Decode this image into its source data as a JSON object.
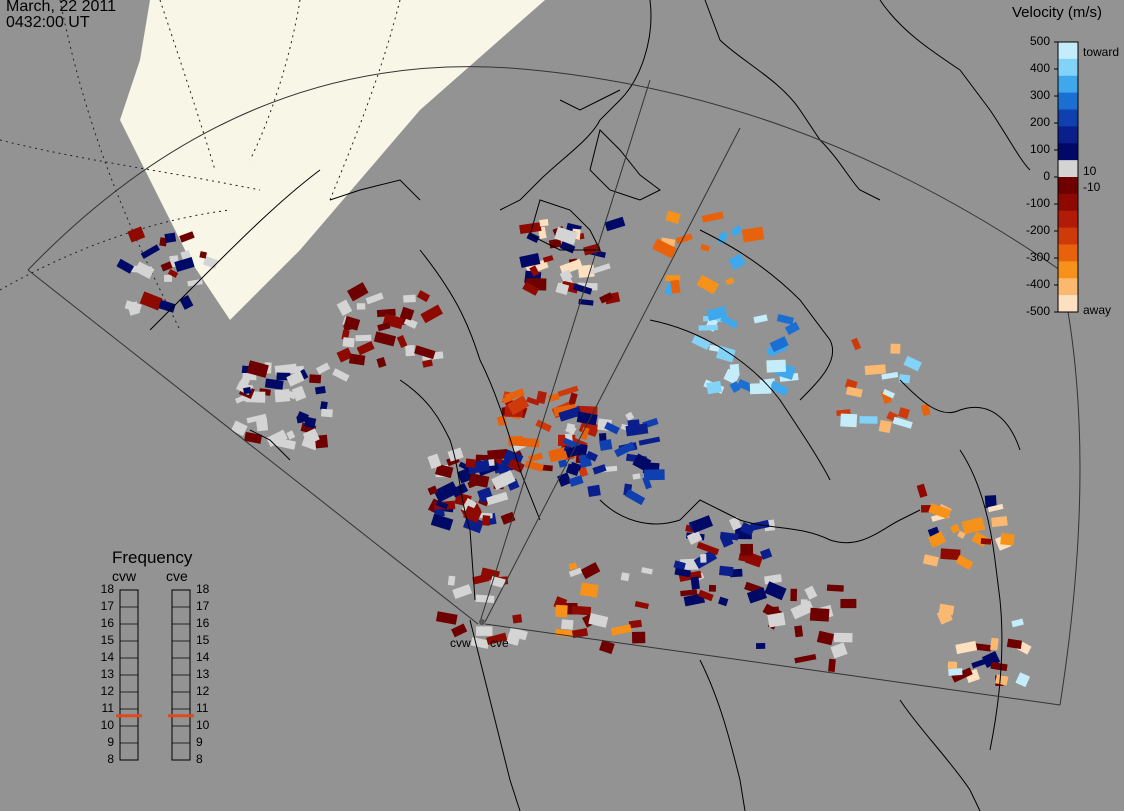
{
  "header": {
    "date": "March, 22 2011",
    "time": "0432:00 UT"
  },
  "velocity_scale": {
    "title": "Velocity (m/s)",
    "ticks": [
      "500",
      "400",
      "300",
      "200",
      "100",
      "0",
      "-100",
      "-200",
      "-300",
      "-400",
      "-500"
    ],
    "inner_labels": [
      "10",
      "-10"
    ],
    "toward_label": "toward",
    "away_label": "away",
    "colors": [
      "#c4ecfb",
      "#83d2f8",
      "#3fa8ec",
      "#1c6fd2",
      "#1040b0",
      "#0a1f8c",
      "#000a66",
      "#d4d4d4",
      "#6e0000",
      "#8e0a00",
      "#b01c08",
      "#cf3a0a",
      "#e8620c",
      "#f6921a",
      "#fbb870",
      "#fde0c0"
    ]
  },
  "frequency_panel": {
    "title": "Frequency",
    "radars": [
      "cvw",
      "cve"
    ],
    "scale": [
      "18",
      "17",
      "16",
      "15",
      "14",
      "13",
      "12",
      "11",
      "10",
      "9",
      "8"
    ],
    "cvw_frequency_mhz": 10.6,
    "cve_frequency_mhz": 10.6,
    "marker_color": "#e24a1a"
  },
  "radar_sites": [
    "cvw",
    "cve"
  ],
  "map_colors": {
    "land_day": "#f8f6e6",
    "ocean_day": "#e8f6fd",
    "night": "#939393",
    "coast": "#000000"
  }
}
